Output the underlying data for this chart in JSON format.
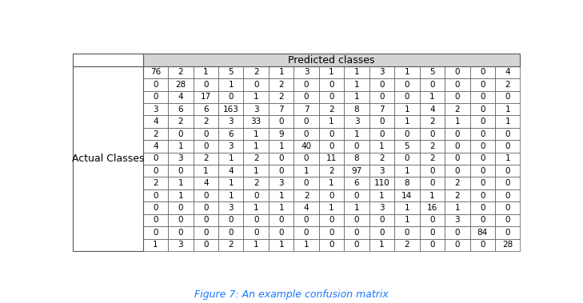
{
  "title": "Figure 7: An example confusion matrix",
  "col_header": "Predicted classes",
  "row_header": "Actual Classes",
  "matrix": [
    [
      76,
      2,
      1,
      5,
      2,
      1,
      3,
      1,
      1,
      3,
      1,
      5,
      0,
      0,
      4
    ],
    [
      0,
      28,
      0,
      1,
      0,
      2,
      0,
      0,
      1,
      0,
      0,
      0,
      0,
      0,
      2
    ],
    [
      0,
      4,
      17,
      0,
      1,
      2,
      0,
      0,
      1,
      0,
      0,
      1,
      0,
      0,
      0
    ],
    [
      3,
      6,
      6,
      163,
      3,
      7,
      7,
      2,
      8,
      7,
      1,
      4,
      2,
      0,
      1
    ],
    [
      4,
      2,
      2,
      3,
      33,
      0,
      0,
      1,
      3,
      0,
      1,
      2,
      1,
      0,
      1
    ],
    [
      2,
      0,
      0,
      6,
      1,
      9,
      0,
      0,
      1,
      0,
      0,
      0,
      0,
      0,
      0
    ],
    [
      4,
      1,
      0,
      3,
      1,
      1,
      40,
      0,
      0,
      1,
      5,
      2,
      0,
      0,
      0
    ],
    [
      0,
      3,
      2,
      1,
      2,
      0,
      0,
      11,
      8,
      2,
      0,
      2,
      0,
      0,
      1
    ],
    [
      0,
      0,
      1,
      4,
      1,
      0,
      1,
      2,
      97,
      3,
      1,
      0,
      0,
      0,
      0
    ],
    [
      2,
      1,
      4,
      1,
      2,
      3,
      0,
      1,
      6,
      110,
      8,
      0,
      2,
      0,
      0
    ],
    [
      0,
      1,
      0,
      1,
      0,
      1,
      2,
      0,
      0,
      1,
      14,
      1,
      2,
      0,
      0
    ],
    [
      0,
      0,
      0,
      3,
      1,
      1,
      4,
      1,
      1,
      3,
      1,
      16,
      1,
      0,
      0
    ],
    [
      0,
      0,
      0,
      0,
      0,
      0,
      0,
      0,
      0,
      0,
      1,
      0,
      3,
      0,
      0
    ],
    [
      0,
      0,
      0,
      0,
      0,
      0,
      0,
      0,
      0,
      0,
      0,
      0,
      0,
      84,
      0
    ],
    [
      1,
      3,
      0,
      2,
      1,
      1,
      1,
      0,
      0,
      1,
      2,
      0,
      0,
      0,
      28
    ]
  ],
  "bg_color": "#ffffff",
  "header_bg": "#d4d4d4",
  "cell_bg": "#ffffff",
  "grid_color": "#555555",
  "text_color": "#000000",
  "title_color": "#1a75ff",
  "title_fontsize": 9,
  "cell_fontsize": 7.5,
  "header_fontsize": 9,
  "row_label_fontsize": 9
}
